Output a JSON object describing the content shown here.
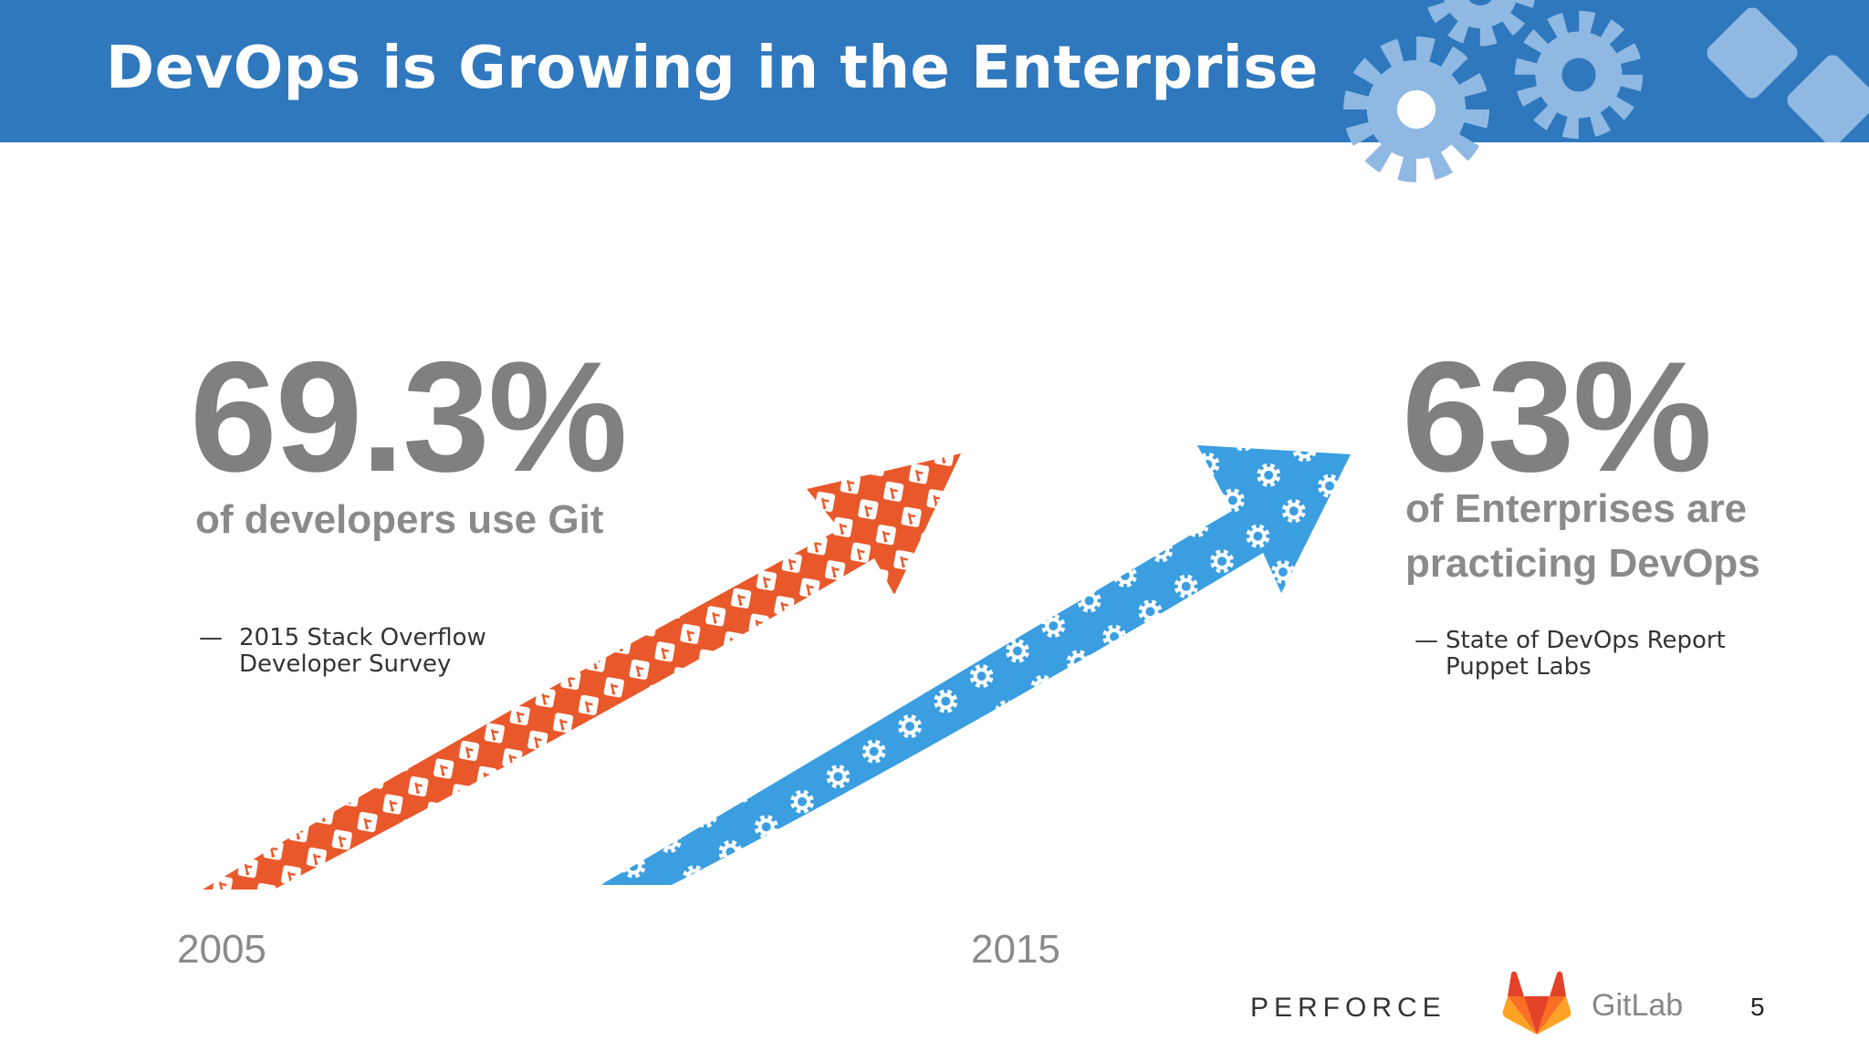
{
  "slide": {
    "title": "DevOps is Growing in the Enterprise",
    "page_number": "5"
  },
  "left_stat": {
    "value": "69.3%",
    "caption": "of developers use Git",
    "source_dash": "—",
    "source_lines": [
      "2015 Stack Overflow",
      "Developer Survey"
    ],
    "arrow_color": "#e8582a"
  },
  "right_stat": {
    "value": "63%",
    "caption": "of Enterprises are practicing DevOps",
    "source_dash": "—",
    "source_lines": [
      "State of DevOps Report",
      "Puppet Labs"
    ],
    "arrow_color": "#3a9ee0"
  },
  "timeline": {
    "start_year": "2005",
    "end_year": "2015"
  },
  "footer": {
    "perforce_logo": "PERFORCE",
    "gitlab_logo_text": "GitLab"
  },
  "colors": {
    "header": "#2f78bd",
    "stat_gray": "#808080",
    "gitlab_orange": "#fc6d26"
  },
  "icons": {
    "header_decoration": "gear-icon",
    "left_arrow_pattern": "git-branch-icon",
    "right_arrow_pattern": "gear-icon",
    "gitlab_logo": "gitlab-tanuki-icon"
  }
}
